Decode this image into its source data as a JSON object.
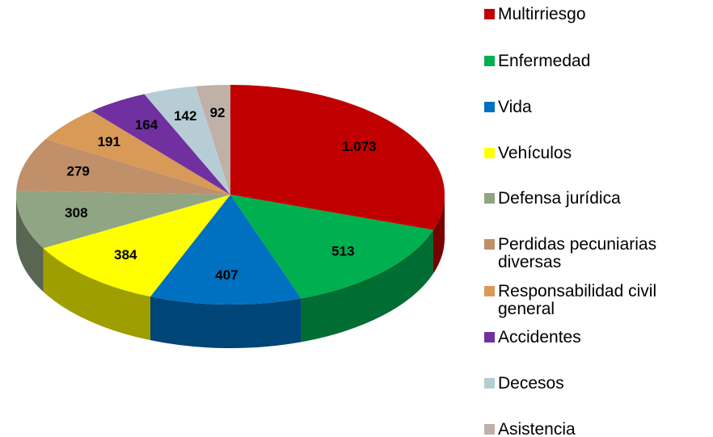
{
  "chart_data": {
    "type": "pie",
    "categories": [
      "Multirriesgo",
      "Enfermedad",
      "Vida",
      "Vehículos",
      "Defensa jurídica",
      "Perdidas pecuniarias diversas",
      "Responsabilidad civil general",
      "Accidentes",
      "Decesos",
      "Asistencia"
    ],
    "values": [
      1073,
      513,
      407,
      384,
      308,
      279,
      191,
      164,
      142,
      92
    ],
    "value_labels": [
      "1.073",
      "513",
      "407",
      "384",
      "308",
      "279",
      "191",
      "164",
      "142",
      "92"
    ],
    "colors": [
      "#c00000",
      "#00b050",
      "#0070c0",
      "#ffff00",
      "#8fa584",
      "#c0906a",
      "#d99a58",
      "#7030a0",
      "#b7cdd6",
      "#bfb0a8"
    ],
    "legend": "right"
  }
}
